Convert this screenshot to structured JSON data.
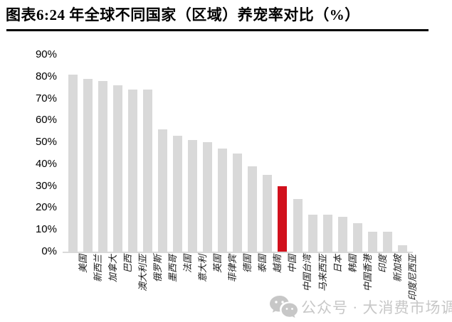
{
  "header": {
    "title": "图表6:24 年全球不同国家（区域）养宠率对比（%）"
  },
  "watermark": {
    "icon": "wechat-icon",
    "text": "公众号 · 大消费市场调研",
    "color": "#c3c3c3"
  },
  "chart_data": {
    "type": "bar",
    "title": "图表6:24 年全球不同国家（区域）养宠率对比（%）",
    "categories": [
      "美国",
      "新西兰",
      "加拿大",
      "巴西",
      "澳大利亚",
      "俄罗斯",
      "墨西哥",
      "法国",
      "意大利",
      "英国",
      "菲律宾",
      "德国",
      "泰国",
      "越南",
      "中国",
      "中国台湾",
      "马来西亚",
      "日本",
      "韩国",
      "中国香港",
      "印度",
      "新加坡",
      "印度尼西亚"
    ],
    "values": [
      81,
      79,
      78,
      76,
      74,
      74,
      56,
      53,
      51,
      50,
      47,
      45,
      39,
      35,
      30,
      24,
      17,
      17,
      16,
      13,
      9,
      9,
      3
    ],
    "unit": "%",
    "highlight_category": "中国",
    "bar_color": "#d9d9d9",
    "highlight_color": "#d1101c",
    "axis_line_color": "#d9d9d9",
    "xlabel": "",
    "ylabel": "",
    "ylim": [
      0,
      90
    ],
    "y_ticks": [
      "90%",
      "80%",
      "70%",
      "60%",
      "50%",
      "40%",
      "30%",
      "20%",
      "10%",
      "0%"
    ],
    "grid": false,
    "legend": false
  }
}
